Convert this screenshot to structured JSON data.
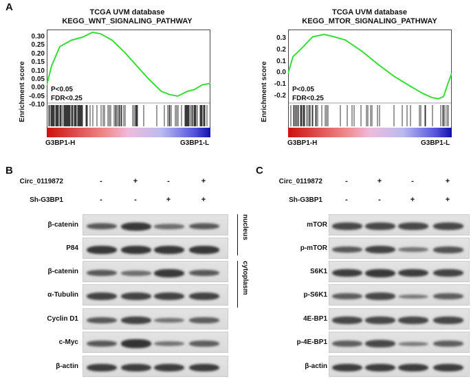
{
  "panels": {
    "a": "A",
    "b": "B",
    "c": "C"
  },
  "gsea": [
    {
      "title1": "TCGA UVM database",
      "title2": "KEGG_WNT_SIGNALING_PATHWAY",
      "ylabel": "Enrichment score",
      "yticks": [
        "0.30",
        "0.25",
        "0.20",
        "0.15",
        "0.10",
        "0.05",
        "0.00",
        "-0.05",
        "-0.10"
      ],
      "pval": "P<0.05",
      "fdr": "FDR<0.25",
      "left_label": "G3BP1-H",
      "right_label": "G3BP1-L"
    },
    {
      "title1": "TCGA UVM database",
      "title2": "KEGG_MTOR_SIGNALING_PATHWAY",
      "ylabel": "Enrichment score",
      "yticks": [
        "0.3",
        "0.2",
        "0.1",
        "0.0",
        "-0.1",
        "-0.2"
      ],
      "pval": "P<0.05",
      "fdr": "FDR<0.25",
      "left_label": "G3BP1-H",
      "right_label": "G3BP1-L"
    }
  ],
  "chart_data": [
    {
      "type": "line",
      "title": "TCGA UVM database KEGG_WNT_SIGNALING_PATHWAY",
      "ylabel": "Enrichment score",
      "ylim": [
        -0.1,
        0.33
      ],
      "x": [
        0,
        0.03,
        0.08,
        0.15,
        0.22,
        0.28,
        0.33,
        0.4,
        0.48,
        0.55,
        0.62,
        0.7,
        0.75,
        0.8,
        0.86,
        0.9,
        0.95,
        1.0
      ],
      "values": [
        0,
        0.12,
        0.24,
        0.28,
        0.3,
        0.33,
        0.32,
        0.28,
        0.2,
        0.12,
        0.04,
        -0.04,
        -0.06,
        -0.07,
        -0.04,
        -0.03,
        0.0,
        0.01
      ]
    },
    {
      "type": "line",
      "title": "TCGA UVM database KEGG_MTOR_SIGNALING_PATHWAY",
      "ylabel": "Enrichment score",
      "ylim": [
        -0.25,
        0.37
      ],
      "x": [
        0,
        0.03,
        0.08,
        0.15,
        0.22,
        0.28,
        0.35,
        0.45,
        0.55,
        0.65,
        0.75,
        0.82,
        0.88,
        0.92,
        0.95,
        0.98,
        1.0
      ],
      "values": [
        0,
        0.15,
        0.22,
        0.33,
        0.35,
        0.33,
        0.3,
        0.2,
        0.08,
        -0.03,
        -0.12,
        -0.18,
        -0.22,
        -0.23,
        -0.21,
        -0.08,
        0.0
      ]
    }
  ],
  "blot_b": {
    "header": [
      {
        "label": "Circ_0119872",
        "marks": [
          "-",
          "+",
          "-",
          "+"
        ]
      },
      {
        "label": "Sh-G3BP1",
        "marks": [
          "-",
          "-",
          "+",
          "+"
        ]
      }
    ],
    "rows": [
      "β-catenin",
      "P84",
      "β-catenin",
      "α-Tubulin",
      "Cyclin D1",
      "c-Myc",
      "β-actin"
    ],
    "fractions": [
      "nucleus",
      "cytoplasm"
    ]
  },
  "blot_c": {
    "header": [
      {
        "label": "Circ_0119872",
        "marks": [
          "-",
          "+",
          "-",
          "+"
        ]
      },
      {
        "label": "Sh-G3BP1",
        "marks": [
          "-",
          "-",
          "+",
          "+"
        ]
      }
    ],
    "rows": [
      "mTOR",
      "p-mTOR",
      "S6K1",
      "p-S6K1",
      "4E-BP1",
      "p-4E-BP1",
      "β-actin"
    ]
  }
}
